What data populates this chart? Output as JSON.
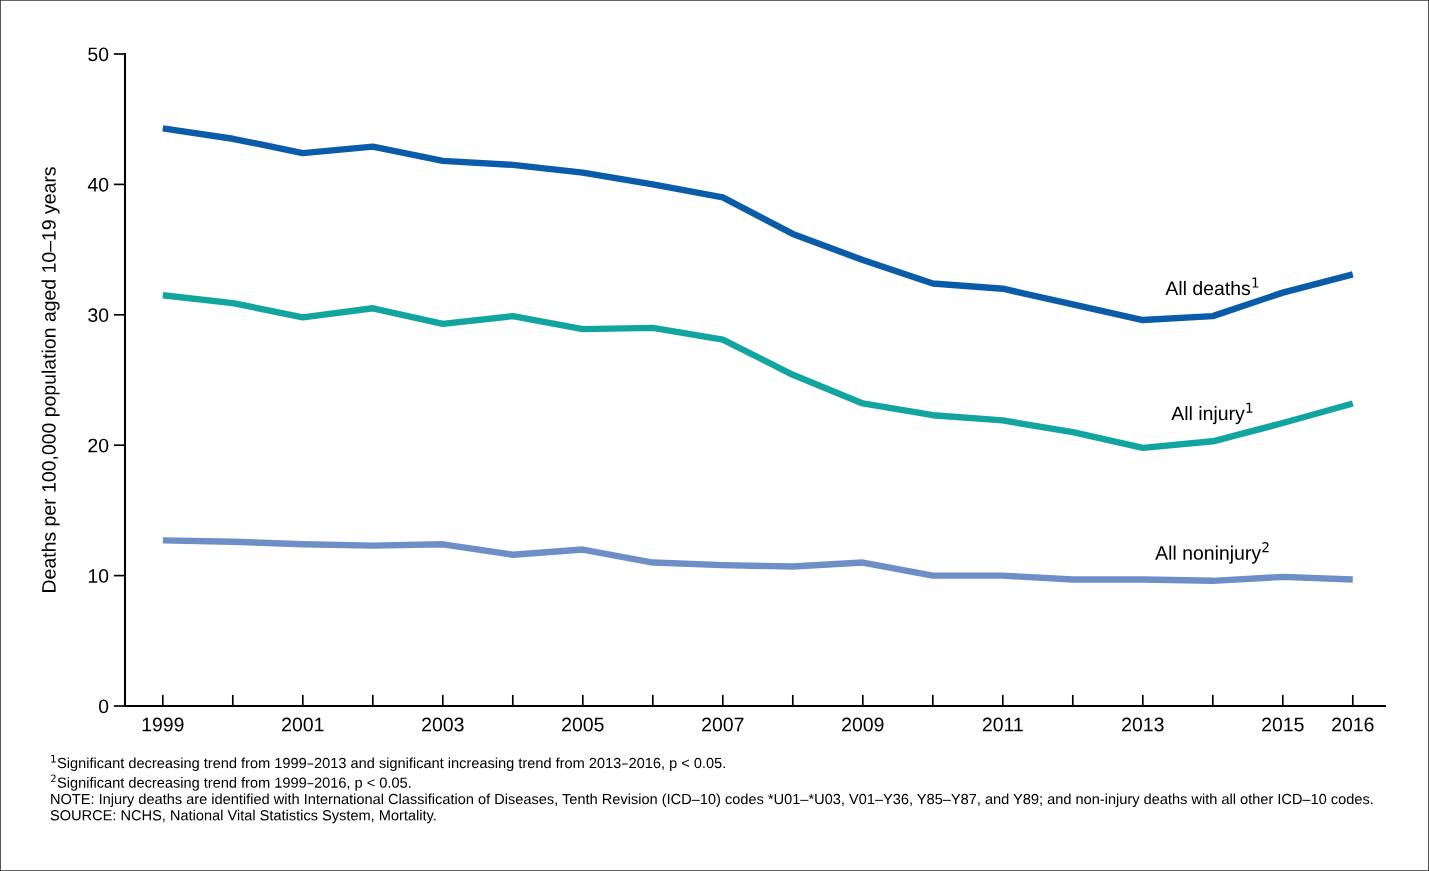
{
  "chart_data": {
    "type": "line",
    "ylabel": "Deaths per 100,000 population aged 10–19 years",
    "x": [
      1999,
      2000,
      2001,
      2002,
      2003,
      2004,
      2005,
      2006,
      2007,
      2008,
      2009,
      2010,
      2011,
      2012,
      2013,
      2014,
      2015,
      2016
    ],
    "xlim": [
      1998.46,
      2016.46
    ],
    "xticks": [
      1999,
      {
        "value": 2000,
        "label": null
      },
      2001,
      {
        "value": 2002,
        "label": null
      },
      2003,
      {
        "value": 2004,
        "label": null
      },
      2005,
      {
        "value": 2006,
        "label": null
      },
      2007,
      {
        "value": 2008,
        "label": null
      },
      2009,
      {
        "value": 2010,
        "label": null
      },
      2011,
      {
        "value": 2012,
        "label": null
      },
      2013,
      {
        "value": 2014,
        "label": null
      },
      2015,
      2016
    ],
    "ylim": [
      0,
      50
    ],
    "yticks": [
      0,
      10,
      20,
      30,
      40,
      50
    ],
    "grid": false,
    "legend": false,
    "marker": "none",
    "line_style": "solid",
    "series": [
      {
        "name": "All deaths$^{1}$",
        "color": "#0a5ca8",
        "values": [
          44.3,
          43.5,
          42.4,
          42.9,
          41.8,
          41.5,
          40.9,
          40.0,
          39.0,
          36.2,
          34.2,
          32.4,
          32.0,
          30.8,
          29.6,
          29.9,
          31.7,
          33.1
        ]
      },
      {
        "name": "All injury$^{1}$",
        "color": "#12a5a0",
        "values": [
          31.5,
          30.9,
          29.8,
          30.5,
          29.3,
          29.9,
          28.9,
          29.0,
          28.1,
          25.4,
          23.2,
          22.3,
          21.9,
          21.0,
          19.8,
          20.3,
          21.7,
          23.2
        ]
      },
      {
        "name": "All noninjury$^{2}$",
        "color": "#6e8ec8",
        "values": [
          12.7,
          12.6,
          12.4,
          12.3,
          12.4,
          11.6,
          12.0,
          11.0,
          10.8,
          10.7,
          11.0,
          10.0,
          10.0,
          9.7,
          9.7,
          9.6,
          9.9,
          9.7
        ]
      }
    ],
    "annotations": [
      "$^{1}$Significant decreasing trend from 1999–2013 and significant increasing trend from 2013–2016, p < 0.05.",
      "$^{2}$Significant decreasing trend from 1999–2016, p < 0.05.",
      "NOTE: Injury deaths are identified with International Classification of Diseases, Tenth Revision (ICD–10) codes *U01–*U03, V01–Y36, Y85–Y87, and Y89; and non-injury deaths with all other ICD–10 codes.",
      "SOURCE: NCHS, National Vital Statistics System, Mortality."
    ]
  }
}
